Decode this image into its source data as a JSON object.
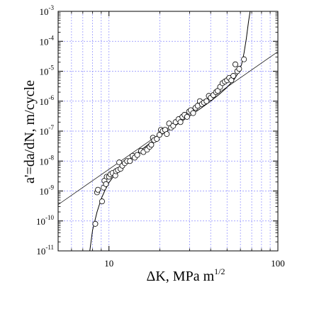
{
  "chart_data": {
    "type": "scatter",
    "x_scale": "log",
    "y_scale": "log",
    "xlim": [
      5,
      100
    ],
    "ylim": [
      1e-11,
      0.001
    ],
    "grid": true,
    "xlabel": "ΔK, MPa m",
    "xlabel_sup": "1/2",
    "ylabel": "a'=da/dN, m/cycle",
    "x_ticks": [
      {
        "value": 10,
        "label": "10"
      },
      {
        "value": 100,
        "label": "100"
      }
    ],
    "y_ticks": [
      {
        "value": 0.001,
        "base": "10",
        "exp": "-3"
      },
      {
        "value": 0.0001,
        "base": "10",
        "exp": "-4"
      },
      {
        "value": 1e-05,
        "base": "10",
        "exp": "-5"
      },
      {
        "value": 1e-06,
        "base": "10",
        "exp": "-6"
      },
      {
        "value": 1e-07,
        "base": "10",
        "exp": "-7"
      },
      {
        "value": 1e-08,
        "base": "10",
        "exp": "-8"
      },
      {
        "value": 1e-09,
        "base": "10",
        "exp": "-9"
      },
      {
        "value": 1e-10,
        "base": "10",
        "exp": "-10"
      },
      {
        "value": 1e-11,
        "base": "10",
        "exp": "-11"
      }
    ],
    "points": [
      [
        8.3,
        8e-11
      ],
      [
        8.5,
        9e-10
      ],
      [
        8.6,
        1.1e-09
      ],
      [
        9.1,
        4.5e-10
      ],
      [
        9.3,
        1.3e-09
      ],
      [
        9.4,
        2.2e-09
      ],
      [
        9.6,
        1.7e-09
      ],
      [
        9.7,
        3e-09
      ],
      [
        10.0,
        3e-09
      ],
      [
        10.2,
        3.6e-09
      ],
      [
        10.5,
        4e-09
      ],
      [
        10.9,
        3.3e-09
      ],
      [
        11.0,
        4.6e-09
      ],
      [
        11.3,
        5e-09
      ],
      [
        11.5,
        9e-09
      ],
      [
        11.7,
        5.5e-09
      ],
      [
        12.0,
        7e-09
      ],
      [
        12.4,
        8.5e-09
      ],
      [
        12.8,
        1e-08
      ],
      [
        13.3,
        1e-08
      ],
      [
        13.8,
        1.5e-08
      ],
      [
        14.2,
        1.3e-08
      ],
      [
        14.7,
        1.6e-08
      ],
      [
        15.5,
        2.2e-08
      ],
      [
        16.0,
        2e-08
      ],
      [
        16.8,
        2.4e-08
      ],
      [
        17.4,
        3e-08
      ],
      [
        17.8,
        3.5e-08
      ],
      [
        18.2,
        6e-08
      ],
      [
        18.5,
        5e-08
      ],
      [
        19.2,
        5.5e-08
      ],
      [
        19.9,
        7.5e-08
      ],
      [
        20.3,
        1.1e-07
      ],
      [
        20.8,
        1e-07
      ],
      [
        21.5,
        1.1e-07
      ],
      [
        22.0,
        8e-08
      ],
      [
        22.7,
        1.8e-07
      ],
      [
        23.3,
        1.3e-07
      ],
      [
        24.0,
        1.5e-07
      ],
      [
        24.8,
        2e-07
      ],
      [
        25.8,
        2.5e-07
      ],
      [
        26.5,
        2e-07
      ],
      [
        27.2,
        3e-07
      ],
      [
        28.0,
        3.5e-07
      ],
      [
        29.0,
        3e-07
      ],
      [
        29.8,
        4.5e-07
      ],
      [
        30.5,
        5e-07
      ],
      [
        31.5,
        4e-07
      ],
      [
        32.5,
        6e-07
      ],
      [
        33.5,
        7e-07
      ],
      [
        34.5,
        1e-06
      ],
      [
        35.5,
        8e-07
      ],
      [
        36.5,
        9e-07
      ],
      [
        37.8,
        1e-06
      ],
      [
        39.0,
        1.5e-06
      ],
      [
        40.0,
        1.3e-06
      ],
      [
        41.5,
        1.6e-06
      ],
      [
        43.0,
        2e-06
      ],
      [
        44.0,
        2.2e-06
      ],
      [
        45.5,
        3e-06
      ],
      [
        47.0,
        4e-06
      ],
      [
        48.5,
        4.5e-06
      ],
      [
        50.0,
        5e-06
      ],
      [
        51.5,
        6e-06
      ],
      [
        53.0,
        5e-06
      ],
      [
        54.5,
        7e-06
      ],
      [
        56.0,
        1.7e-05
      ],
      [
        57.5,
        1e-05
      ],
      [
        59.0,
        1.2e-05
      ],
      [
        63.0,
        2.5e-05
      ]
    ],
    "lines": [
      {
        "kind": "power-law",
        "x": [
          5,
          100
        ],
        "y": [
          3.5e-10,
          4.5e-05
        ]
      },
      {
        "kind": "curve",
        "x": [
          7.7,
          8.0,
          8.5,
          9.0,
          9.5,
          10.0,
          11.0,
          12.0,
          14.0,
          17.0,
          20.0,
          25.0,
          30.0,
          35.0,
          40.0,
          45.0,
          50.0,
          55.0,
          58.0,
          61.0,
          63.0,
          65.0,
          67.0,
          68.5
        ],
        "y": [
          1e-11,
          5e-11,
          2e-10,
          5.5e-10,
          1.1e-09,
          1.9e-09,
          4e-09,
          7e-09,
          1.5e-08,
          3.5e-08,
          7e-08,
          1.6e-07,
          3.2e-07,
          5.8e-07,
          1e-06,
          1.7e-06,
          2.9e-06,
          5.2e-06,
          8.5e-06,
          1.7e-05,
          4e-05,
          0.00012,
          0.00045,
          0.001
        ]
      }
    ]
  }
}
